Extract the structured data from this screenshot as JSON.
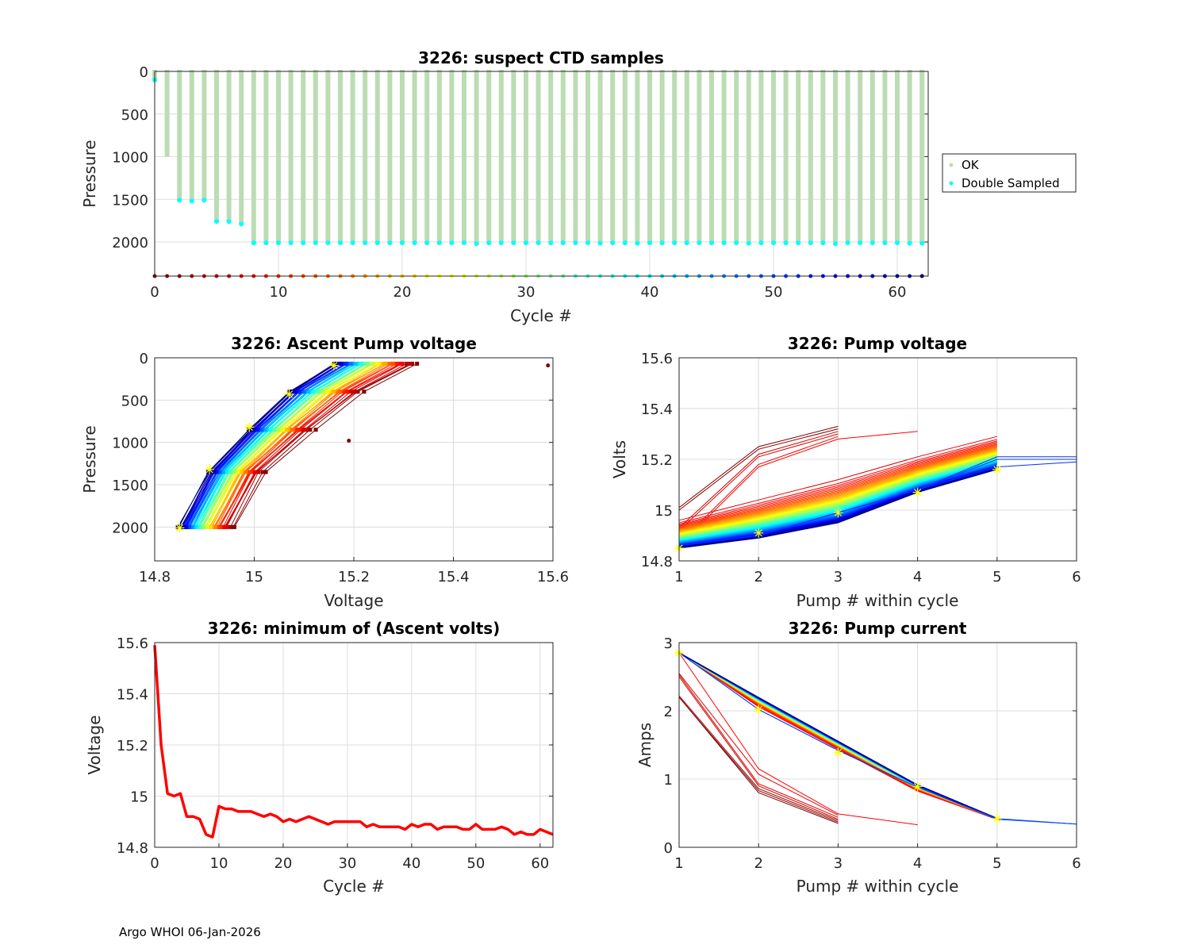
{
  "footer": "Argo WHOI 06-Jan-2026",
  "colors": {
    "ok": "#bcdcb4",
    "double_sampled": "#00ffff",
    "min_line": "#ff0000",
    "marker": "#ffff00"
  },
  "chart_data": [
    {
      "id": "suspect-ctd",
      "type": "bar",
      "title": "3226: suspect CTD samples",
      "xlabel": "Cycle #",
      "ylabel": "Pressure",
      "xlim": [
        0,
        62.5
      ],
      "ylim": [
        2400,
        0
      ],
      "xticks": [
        0,
        10,
        20,
        30,
        40,
        50,
        60
      ],
      "yticks": [
        0,
        500,
        1000,
        1500,
        2000
      ],
      "grid": true,
      "legend": {
        "placement": "outside-right",
        "entries": [
          "OK",
          "Double Sampled"
        ]
      },
      "cycles": [
        0,
        1,
        2,
        3,
        4,
        5,
        6,
        7,
        8,
        9,
        10,
        11,
        12,
        13,
        14,
        15,
        16,
        17,
        18,
        19,
        20,
        21,
        22,
        23,
        24,
        25,
        26,
        27,
        28,
        29,
        30,
        31,
        32,
        33,
        34,
        35,
        36,
        37,
        38,
        39,
        40,
        41,
        42,
        43,
        44,
        45,
        46,
        47,
        48,
        49,
        50,
        51,
        52,
        53,
        54,
        55,
        56,
        57,
        58,
        59,
        60,
        61,
        62
      ],
      "ok_max_pressure": [
        100,
        1000,
        1510,
        1520,
        1510,
        1760,
        1760,
        1790,
        2010,
        2010,
        2010,
        2010,
        2010,
        2010,
        2010,
        2010,
        2010,
        2010,
        2010,
        2010,
        2010,
        2010,
        2010,
        2010,
        2010,
        2010,
        2020,
        2010,
        2010,
        2010,
        2010,
        2010,
        2010,
        2010,
        2010,
        2010,
        2015,
        2010,
        2010,
        2015,
        2010,
        2010,
        2010,
        2010,
        2010,
        2010,
        2010,
        2010,
        2015,
        2010,
        2010,
        2010,
        2010,
        2010,
        2010,
        2020,
        2010,
        2010,
        2010,
        2010,
        2010,
        2015,
        2015
      ],
      "double_sampled_pressure": [
        100,
        null,
        1510,
        1520,
        1510,
        1760,
        1760,
        1790,
        2010,
        2010,
        2010,
        2010,
        2010,
        2010,
        2010,
        2010,
        2010,
        2010,
        2010,
        2010,
        2010,
        2010,
        2010,
        2010,
        2010,
        2010,
        2020,
        2010,
        2010,
        2010,
        2010,
        2010,
        2010,
        2010,
        2010,
        2010,
        2015,
        2010,
        2010,
        2015,
        2010,
        2010,
        2010,
        2010,
        2010,
        2010,
        2010,
        2010,
        2015,
        2010,
        2010,
        2010,
        2010,
        2010,
        2010,
        2020,
        2010,
        2010,
        2010,
        2010,
        2010,
        2015,
        2015
      ],
      "cycle_marker_pressure": 2400
    },
    {
      "id": "ascent-pump-voltage",
      "type": "line",
      "title": "3226: Ascent Pump voltage",
      "xlabel": "Voltage",
      "ylabel": "Pressure",
      "xlim": [
        14.8,
        15.6
      ],
      "ylim": [
        2400,
        0
      ],
      "xticks": [
        14.8,
        15,
        15.2,
        15.4,
        15.6
      ],
      "xtick_labels": [
        "14.8",
        "15",
        "15.2",
        "15.4",
        "15.6"
      ],
      "yticks": [
        0,
        500,
        1000,
        1500,
        2000
      ],
      "grid": true,
      "pressures": [
        2000,
        1350,
        850,
        400,
        70
      ],
      "series_note": "one line per cycle 0-62, colored jet (dark red=cycle 0 ... dark blue=cycle 62)",
      "first_cycle_voltages": [
        14.96,
        15.02,
        15.12,
        15.22,
        15.33
      ],
      "last_cycle_voltages": [
        14.85,
        14.91,
        14.99,
        15.07,
        15.16
      ],
      "outliers": [
        {
          "voltage": 15.59,
          "pressure": 90
        },
        {
          "voltage": 15.19,
          "pressure": 980
        }
      ],
      "highlight_points": [
        {
          "voltage": 14.85,
          "pressure": 2010
        },
        {
          "voltage": 14.91,
          "pressure": 1320
        },
        {
          "voltage": 14.99,
          "pressure": 820
        },
        {
          "voltage": 15.07,
          "pressure": 430
        },
        {
          "voltage": 15.16,
          "pressure": 90
        }
      ]
    },
    {
      "id": "pump-voltage",
      "type": "line",
      "title": "3226: Pump voltage",
      "xlabel": "Pump # within cycle",
      "ylabel": "Volts",
      "xlim": [
        1,
        6
      ],
      "ylim": [
        14.8,
        15.6
      ],
      "xticks": [
        1,
        2,
        3,
        4,
        5,
        6
      ],
      "yticks": [
        14.8,
        15,
        15.2,
        15.4,
        15.6
      ],
      "ytick_labels": [
        "14.8",
        "15",
        "15.2",
        "15.4",
        "15.6"
      ],
      "grid": true,
      "series_note": "one line per cycle 0-62, colored jet",
      "early_cycles": [
        {
          "values": [
            15.01,
            15.25,
            15.33
          ]
        },
        {
          "values": [
            15.0,
            15.24,
            15.32
          ]
        },
        {
          "values": [
            14.93,
            15.22,
            15.31
          ]
        },
        {
          "values": [
            14.92,
            15.21,
            15.3
          ]
        },
        {
          "values": [
            14.87,
            15.18,
            15.29
          ]
        },
        {
          "values": [
            14.86,
            15.17,
            15.28,
            15.31
          ]
        }
      ],
      "main_first": [
        14.96,
        15.04,
        15.12,
        15.21,
        15.29
      ],
      "main_last": [
        14.85,
        14.89,
        14.95,
        15.07,
        15.16
      ],
      "late_extended": [
        {
          "values": [
            14.86,
            14.9,
            14.99,
            15.08,
            15.21,
            15.21
          ]
        },
        {
          "values": [
            14.86,
            14.9,
            14.99,
            15.08,
            15.2,
            15.2
          ]
        },
        {
          "values": [
            14.86,
            14.9,
            14.99,
            15.08,
            15.17,
            15.19
          ]
        }
      ],
      "highlight_points": [
        [
          1,
          14.85
        ],
        [
          2,
          14.91
        ],
        [
          3,
          14.99
        ],
        [
          4,
          15.07
        ],
        [
          5,
          15.16
        ]
      ]
    },
    {
      "id": "min-ascent-volts",
      "type": "line",
      "title": "3226: minimum of (Ascent volts)",
      "xlabel": "Cycle #",
      "ylabel": "Voltage",
      "xlim": [
        0,
        62
      ],
      "ylim": [
        14.8,
        15.6
      ],
      "xticks": [
        0,
        10,
        20,
        30,
        40,
        50,
        60
      ],
      "yticks": [
        14.8,
        15,
        15.2,
        15.4,
        15.6
      ],
      "ytick_labels": [
        "14.8",
        "15",
        "15.2",
        "15.4",
        "15.6"
      ],
      "grid": true,
      "x": [
        0,
        1,
        2,
        3,
        4,
        5,
        6,
        7,
        8,
        9,
        10,
        11,
        12,
        13,
        14,
        15,
        16,
        17,
        18,
        19,
        20,
        21,
        22,
        23,
        24,
        25,
        26,
        27,
        28,
        29,
        30,
        31,
        32,
        33,
        34,
        35,
        36,
        37,
        38,
        39,
        40,
        41,
        42,
        43,
        44,
        45,
        46,
        47,
        48,
        49,
        50,
        51,
        52,
        53,
        54,
        55,
        56,
        57,
        58,
        59,
        60,
        61,
        62
      ],
      "values": [
        15.59,
        15.2,
        15.01,
        15.0,
        15.01,
        14.92,
        14.92,
        14.91,
        14.85,
        14.84,
        14.96,
        14.95,
        14.95,
        14.94,
        14.94,
        14.94,
        14.93,
        14.92,
        14.93,
        14.92,
        14.9,
        14.91,
        14.9,
        14.91,
        14.92,
        14.91,
        14.9,
        14.89,
        14.9,
        14.9,
        14.9,
        14.9,
        14.9,
        14.88,
        14.89,
        14.88,
        14.88,
        14.88,
        14.88,
        14.87,
        14.89,
        14.88,
        14.89,
        14.89,
        14.87,
        14.88,
        14.88,
        14.88,
        14.87,
        14.87,
        14.89,
        14.87,
        14.87,
        14.87,
        14.88,
        14.87,
        14.85,
        14.86,
        14.85,
        14.85,
        14.87,
        14.86,
        14.85
      ],
      "series": [
        {
          "name": "minimum ascent volts",
          "color": "#ff0000"
        }
      ]
    },
    {
      "id": "pump-current",
      "type": "line",
      "title": "3226: Pump current",
      "xlabel": "Pump # within cycle",
      "ylabel": "Amps",
      "xlim": [
        1,
        6
      ],
      "ylim": [
        0,
        3
      ],
      "xticks": [
        1,
        2,
        3,
        4,
        5,
        6
      ],
      "yticks": [
        0,
        1,
        2,
        3
      ],
      "grid": true,
      "series_note": "one line per cycle 0-62, colored jet",
      "early_cycles": [
        {
          "values": [
            2.2,
            0.8,
            0.35
          ]
        },
        {
          "values": [
            2.2,
            0.83,
            0.37
          ]
        },
        {
          "values": [
            2.22,
            0.86,
            0.39
          ]
        },
        {
          "values": [
            2.5,
            0.9,
            0.41
          ]
        },
        {
          "values": [
            2.53,
            0.93,
            0.44
          ]
        },
        {
          "values": [
            2.55,
            1.07,
            0.47
          ]
        },
        {
          "values": [
            2.85,
            1.15,
            0.49,
            0.33
          ]
        }
      ],
      "main_band_upper": [
        2.85,
        2.25,
        1.6,
        0.95,
        0.43
      ],
      "main_band_lower": [
        2.85,
        1.98,
        1.37,
        0.77,
        0.4
      ],
      "late_extended": [
        {
          "values": [
            2.85,
            2.02,
            1.42,
            0.88,
            0.42,
            0.34
          ]
        },
        {
          "values": [
            2.85,
            2.02,
            1.42,
            0.88,
            0.41,
            0.34
          ]
        }
      ],
      "highlight_points": [
        [
          1,
          2.85
        ],
        [
          2,
          2.02
        ],
        [
          3,
          1.39
        ],
        [
          4,
          0.89
        ],
        [
          5,
          0.42
        ]
      ]
    }
  ]
}
